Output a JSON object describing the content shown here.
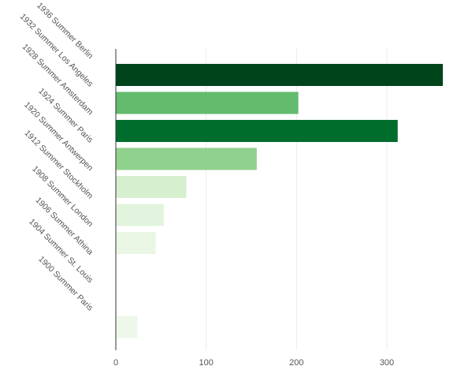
{
  "chart_data": {
    "type": "bar",
    "orientation": "horizontal",
    "categories": [
      "1936 Summer Berlin",
      "1932 Summer Los Angeles",
      "1928 Summer Amsterdam",
      "1924 Summer Paris",
      "1920 Summer Antwerpen",
      "1912 Summer Stockholm",
      "1908 Summer London",
      "1906 Summer Athina",
      "1904 Summer St. Louis",
      "1900 Summer Paris"
    ],
    "values": [
      362,
      202,
      312,
      156,
      78,
      53,
      44,
      0,
      0,
      24
    ],
    "colors": [
      "#00441b",
      "#63bb6d",
      "#006d2c",
      "#90d18d",
      "#d5efcf",
      "#e2f4dd",
      "#e8f6e3",
      "#f7fcf5",
      "#f7fcf5",
      "#eef8ea"
    ],
    "xticks": [
      0,
      100,
      200,
      300
    ],
    "xlim": [
      0,
      370
    ],
    "grid": true,
    "title": "",
    "xlabel": "",
    "ylabel": ""
  }
}
